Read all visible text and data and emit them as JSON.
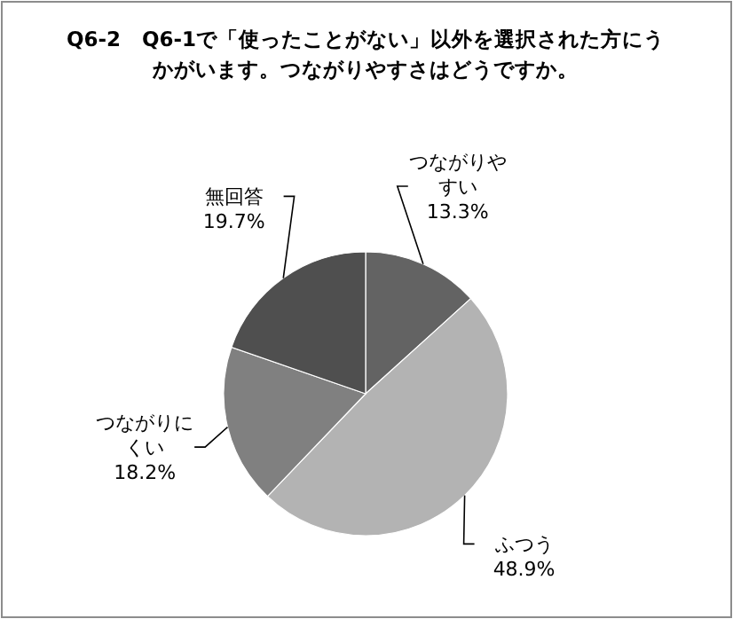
{
  "chart_data": {
    "type": "pie",
    "title": "Q6-2　Q6-1で「使ったことがない」以外を選択された方にうかがいます。つながりやすさはどうですか。",
    "categories": [
      "つながりやすい",
      "ふつう",
      "つながりにくい",
      "無回答"
    ],
    "values": [
      13.3,
      48.9,
      18.2,
      19.7
    ],
    "colors": [
      "#636363",
      "#b3b3b3",
      "#808080",
      "#4f4f4f"
    ],
    "value_labels": [
      "13.3%",
      "48.9%",
      "18.2%",
      "19.7%"
    ]
  }
}
